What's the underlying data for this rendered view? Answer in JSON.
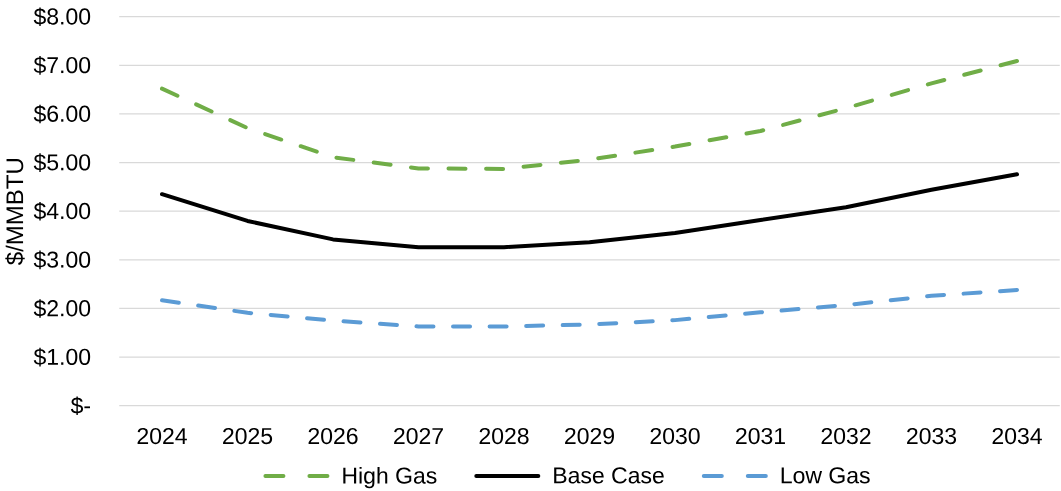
{
  "chart_data": {
    "type": "line",
    "ylabel": "$/MMBTU",
    "categories": [
      "2024",
      "2025",
      "2026",
      "2027",
      "2028",
      "2029",
      "2030",
      "2031",
      "2032",
      "2033",
      "2034"
    ],
    "series": [
      {
        "name": "High Gas",
        "color": "#70ad47",
        "line_style": "dashed",
        "values": [
          6.52,
          5.71,
          5.11,
          4.88,
          4.87,
          5.06,
          5.33,
          5.65,
          6.12,
          6.63,
          7.09
        ]
      },
      {
        "name": "Base Case",
        "color": "#000000",
        "line_style": "solid",
        "values": [
          4.35,
          3.8,
          3.42,
          3.26,
          3.26,
          3.36,
          3.55,
          3.82,
          4.08,
          4.44,
          4.76
        ]
      },
      {
        "name": "Low Gas",
        "color": "#5b9bd5",
        "line_style": "dashed",
        "values": [
          2.17,
          1.91,
          1.75,
          1.63,
          1.63,
          1.67,
          1.76,
          1.92,
          2.07,
          2.26,
          2.38
        ]
      }
    ],
    "ylim": [
      0,
      8
    ],
    "yticks": [
      {
        "value": 0,
        "label": "$-"
      },
      {
        "value": 1,
        "label": "$1.00"
      },
      {
        "value": 2,
        "label": "$2.00"
      },
      {
        "value": 3,
        "label": "$3.00"
      },
      {
        "value": 4,
        "label": "$4.00"
      },
      {
        "value": 5,
        "label": "$5.00"
      },
      {
        "value": 6,
        "label": "$6.00"
      },
      {
        "value": 7,
        "label": "$7.00"
      },
      {
        "value": 8,
        "label": "$8.00"
      }
    ],
    "grid": "y",
    "legend": "bottom"
  }
}
